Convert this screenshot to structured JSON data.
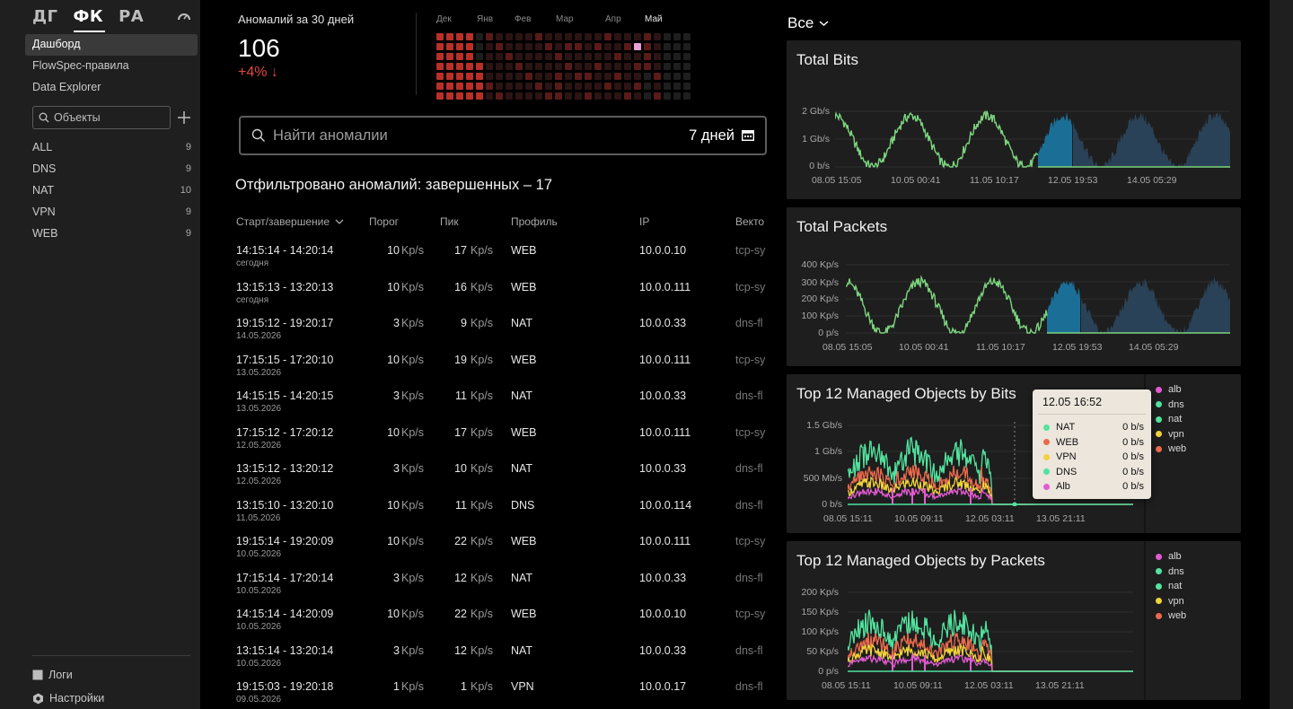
{
  "sidebar": {
    "logos": [
      "ДГ",
      "ФК",
      "РА"
    ],
    "nav": [
      "Дашборд",
      "FlowSpec-правила",
      "Data Explorer"
    ],
    "search_placeholder": "Объекты",
    "objects": [
      {
        "name": "ALL",
        "count": "9"
      },
      {
        "name": "DNS",
        "count": "9"
      },
      {
        "name": "NAT",
        "count": "10"
      },
      {
        "name": "VPN",
        "count": "9"
      },
      {
        "name": "WEB",
        "count": "9"
      }
    ],
    "bottom": {
      "logs": "Логи",
      "settings": "Настройки"
    }
  },
  "stats": {
    "label": "Аномалий за 30 дней",
    "value": "106",
    "delta": "+4% ↓"
  },
  "heatmap": {
    "months": [
      "Дек",
      "Янв",
      "Фев",
      "Мар",
      "Апр",
      "Май"
    ],
    "current_month": "Май",
    "colors": {
      "high": "#b93028",
      "mid": "#5a1a18",
      "low": "#2b1413",
      "empty": "#1e1e1e",
      "selected": "#e7a3d8"
    }
  },
  "search": {
    "placeholder": "Найти аномалии",
    "range": "7 дней"
  },
  "filtered_text": "Отфильтровано аномалий: завершенных – 17",
  "table": {
    "headers": {
      "time": "Старт/завершение",
      "threshold": "Порог",
      "peak": "Пик",
      "profile": "Профиль",
      "ip": "IP",
      "vector": "Векто"
    },
    "rows": [
      {
        "start": "14:15:14",
        "end": "- 14:20:14",
        "date": "сегодня",
        "thr": "10",
        "thr_unit": "Kp/s",
        "peak": "17",
        "peak_unit": "Kp/s",
        "profile": "WEB",
        "ip": "10.0.0.10",
        "vector": "tcp-sy"
      },
      {
        "start": "13:15:13",
        "end": "- 13:20:13",
        "date": "сегодня",
        "thr": "10",
        "thr_unit": "Kp/s",
        "peak": "16",
        "peak_unit": "Kp/s",
        "profile": "WEB",
        "ip": "10.0.0.111",
        "vector": "tcp-sy"
      },
      {
        "start": "19:15:12",
        "end": "- 19:20:17",
        "date": "14.05.2026",
        "thr": "3",
        "thr_unit": "Kp/s",
        "peak": "9",
        "peak_unit": "Kp/s",
        "profile": "NAT",
        "ip": "10.0.0.33",
        "vector": "dns-fl"
      },
      {
        "start": "17:15:15",
        "end": "- 17:20:10",
        "date": "13.05.2026",
        "thr": "10",
        "thr_unit": "Kp/s",
        "peak": "19",
        "peak_unit": "Kp/s",
        "profile": "WEB",
        "ip": "10.0.0.111",
        "vector": "tcp-sy"
      },
      {
        "start": "14:15:15",
        "end": "- 14:20:15",
        "date": "13.05.2026",
        "thr": "3",
        "thr_unit": "Kp/s",
        "peak": "11",
        "peak_unit": "Kp/s",
        "profile": "NAT",
        "ip": "10.0.0.33",
        "vector": "dns-fl"
      },
      {
        "start": "17:15:12",
        "end": "- 17:20:12",
        "date": "12.05.2026",
        "thr": "10",
        "thr_unit": "Kp/s",
        "peak": "17",
        "peak_unit": "Kp/s",
        "profile": "WEB",
        "ip": "10.0.0.111",
        "vector": "tcp-sy"
      },
      {
        "start": "13:15:12",
        "end": "- 13:20:12",
        "date": "12.05.2026",
        "thr": "3",
        "thr_unit": "Kp/s",
        "peak": "10",
        "peak_unit": "Kp/s",
        "profile": "NAT",
        "ip": "10.0.0.33",
        "vector": "dns-fl"
      },
      {
        "start": "13:15:10",
        "end": "- 13:20:10",
        "date": "11.05.2026",
        "thr": "10",
        "thr_unit": "Kp/s",
        "peak": "11",
        "peak_unit": "Kp/s",
        "profile": "DNS",
        "ip": "10.0.0.114",
        "vector": "dns-fl"
      },
      {
        "start": "19:15:14",
        "end": "- 19:20:09",
        "date": "10.05.2026",
        "thr": "10",
        "thr_unit": "Kp/s",
        "peak": "22",
        "peak_unit": "Kp/s",
        "profile": "WEB",
        "ip": "10.0.0.111",
        "vector": "tcp-sy"
      },
      {
        "start": "17:15:14",
        "end": "- 17:20:14",
        "date": "10.05.2026",
        "thr": "3",
        "thr_unit": "Kp/s",
        "peak": "12",
        "peak_unit": "Kp/s",
        "profile": "NAT",
        "ip": "10.0.0.33",
        "vector": "dns-fl"
      },
      {
        "start": "14:15:14",
        "end": "- 14:20:09",
        "date": "10.05.2026",
        "thr": "10",
        "thr_unit": "Kp/s",
        "peak": "22",
        "peak_unit": "Kp/s",
        "profile": "WEB",
        "ip": "10.0.0.10",
        "vector": "tcp-sy"
      },
      {
        "start": "13:15:14",
        "end": "- 13:20:14",
        "date": "10.05.2026",
        "thr": "3",
        "thr_unit": "Kp/s",
        "peak": "12",
        "peak_unit": "Kp/s",
        "profile": "NAT",
        "ip": "10.0.0.33",
        "vector": "dns-fl"
      },
      {
        "start": "19:15:03",
        "end": "- 19:20:18",
        "date": "09.05.2026",
        "thr": "1",
        "thr_unit": "Kp/s",
        "peak": "1",
        "peak_unit": "Kp/s",
        "profile": "VPN",
        "ip": "10.0.0.17",
        "vector": "dns-fl"
      }
    ]
  },
  "right": {
    "filter": "Все",
    "cards": {
      "bits": {
        "title": "Total Bits",
        "yticks": [
          "2 Gb/s",
          "1 Gb/s",
          "0 b/s"
        ],
        "xticks": [
          "08.05 15:05",
          "10.05 00:41",
          "11.05 10:17",
          "12.05 19:53",
          "14.05 05:29"
        ]
      },
      "packets": {
        "title": "Total Packets",
        "yticks": [
          "400 Kp/s",
          "300 Kp/s",
          "200 Kp/s",
          "100 Kp/s",
          "0 p/s"
        ],
        "xticks": [
          "08.05 15:05",
          "10.05 00:41",
          "11.05 10:17",
          "12.05 19:53",
          "14.05 05:29"
        ]
      },
      "top_bits": {
        "title": "Top 12 Managed Objects by Bits",
        "yticks": [
          "1.5 Gb/s",
          "1 Gb/s",
          "500 Mb/s",
          "0 b/s"
        ],
        "xticks": [
          "08.05 15:11",
          "10.05 09:11",
          "12.05 03:11",
          "13.05 21:11"
        ]
      },
      "top_packets": {
        "title": "Top 12 Managed Objects by Packets",
        "yticks": [
          "200 Kp/s",
          "150 Kp/s",
          "100 Kp/s",
          "50 Kp/s",
          "0 p/s"
        ],
        "xticks": [
          "08.05 15:11",
          "10.05 09:11",
          "12.05 03:11",
          "13.05 21:11"
        ]
      }
    },
    "legend": [
      {
        "name": "alb",
        "color": "#e35bd2"
      },
      {
        "name": "dns",
        "color": "#4fe3a0"
      },
      {
        "name": "nat",
        "color": "#52e39e"
      },
      {
        "name": "vpn",
        "color": "#f1d23b"
      },
      {
        "name": "web",
        "color": "#ec6a4c"
      }
    ],
    "tooltip": {
      "title": "12.05 16:52",
      "rows": [
        {
          "name": "NAT",
          "value": "0 b/s",
          "color": "#52e39e"
        },
        {
          "name": "WEB",
          "value": "0 b/s",
          "color": "#ec6a4c"
        },
        {
          "name": "VPN",
          "value": "0 b/s",
          "color": "#f1d23b"
        },
        {
          "name": "DNS",
          "value": "0 b/s",
          "color": "#4fe3a0"
        },
        {
          "name": "Alb",
          "value": "0 b/s",
          "color": "#e35bd2"
        }
      ]
    },
    "colors": {
      "line_green": "#7cd47e",
      "area_blue": "#1b6f97",
      "area_dark": "#2a4257"
    }
  }
}
